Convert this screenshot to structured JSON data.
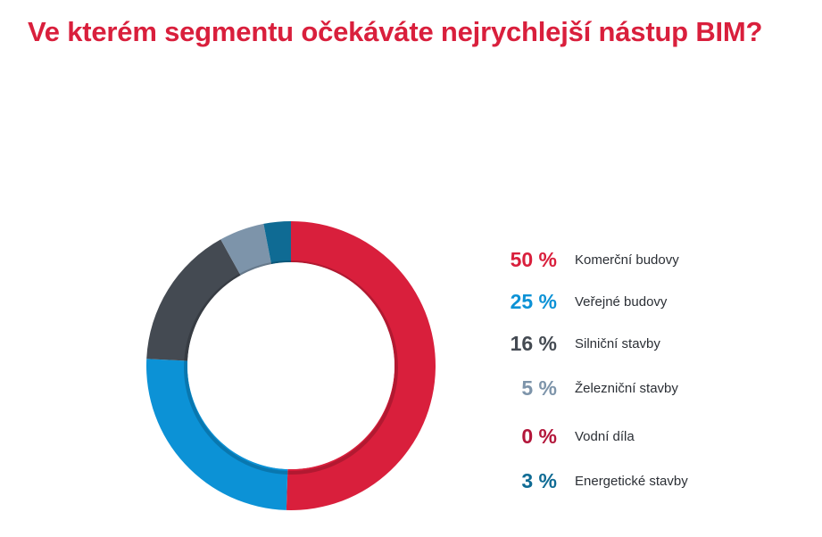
{
  "page": {
    "title": "Ve kterém segmentu očekáváte nejrychlejší nástup BIM?"
  },
  "colors": {
    "title": "#d91f3c",
    "background": "#ffffff"
  },
  "chart_data": {
    "type": "pie",
    "title": "Ve kterém segmentu očekáváte nejrychlejší nástup BIM?",
    "donut": true,
    "legend_position": "right",
    "unit": "%",
    "categories": [
      "Komerční budovy",
      "Veřejné budovy",
      "Silniční stavby",
      "Železniční stavby",
      "Vodní díla",
      "Energetické stavby"
    ],
    "values": [
      50,
      25,
      16,
      5,
      0,
      3
    ],
    "value_labels": [
      "50 %",
      "25 %",
      "16 %",
      "5 %",
      "0 %",
      "3 %"
    ],
    "colors": [
      "#d91f3c",
      "#0c92d6",
      "#444a52",
      "#7d94aa",
      "#b3163a",
      "#0f6b94"
    ]
  }
}
